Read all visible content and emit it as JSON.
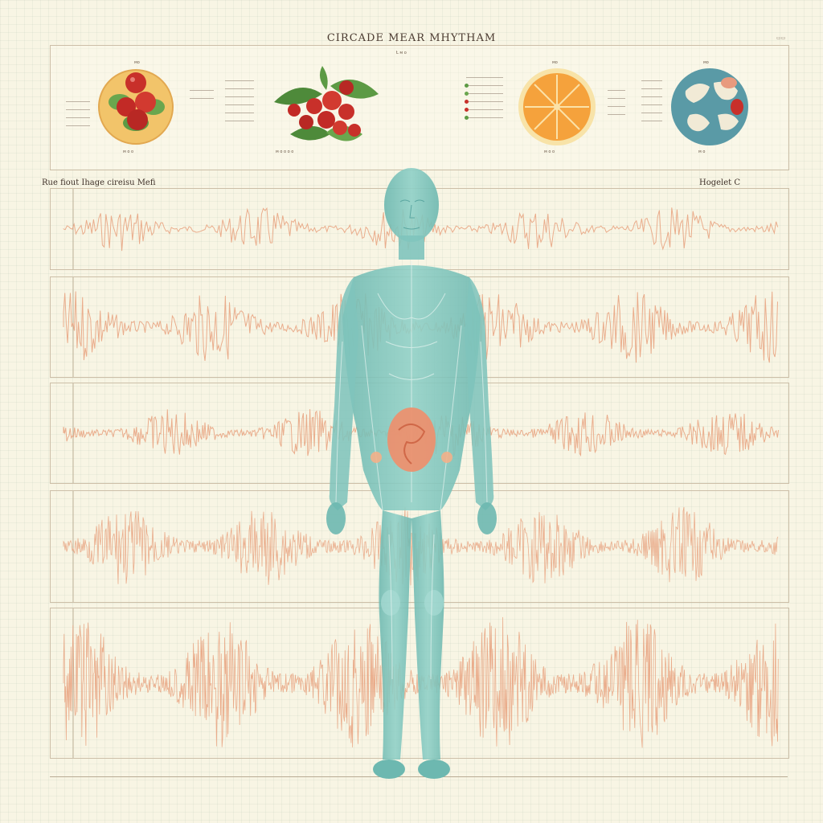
{
  "title": "CIRCADE MEAR MHYTHAM",
  "top_panel": {
    "caption": "Ƚ ᴍ ᴏ",
    "foods": [
      {
        "name": "tomato-basil-bowl-icon",
        "label": "ᴍᴏ",
        "caption": "ᴍ ᴏ ᴏ"
      },
      {
        "name": "cherry-leaves-icon",
        "label": "",
        "caption": "ᴍ ᴏ ᴏ ᴏ ᴏ"
      },
      {
        "name": "orange-slice-icon",
        "label": "ᴍᴏ",
        "caption": "ᴍ ᴏ ᴏ"
      },
      {
        "name": "globe-plate-icon",
        "label": "ᴍᴏ",
        "caption": "ᴍ ᴏ"
      }
    ]
  },
  "section": {
    "left_label": "Rue fiout Ihage cireisu Mefi",
    "right_label": "Hogelet C"
  },
  "colors": {
    "wave": "#e8a07c",
    "figure": "#7fc4bc",
    "figure_dark": "#5aa6a0",
    "organ": "#ee8f6c",
    "background": "#f8f5e4"
  }
}
